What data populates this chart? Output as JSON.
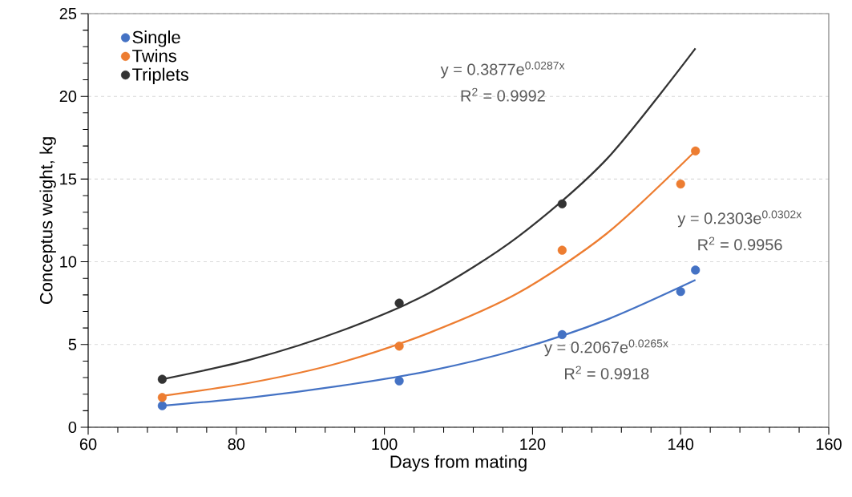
{
  "chart_data": {
    "type": "scatter",
    "xlabel": "Days from mating",
    "ylabel": "Conceptus weight, kg",
    "xlim": [
      60,
      160
    ],
    "ylim": [
      0,
      25
    ],
    "xticks": [
      60,
      80,
      100,
      120,
      140,
      160
    ],
    "yticks": [
      0,
      5,
      10,
      15,
      20,
      25
    ],
    "grid": "y",
    "legend": "top left",
    "series": [
      {
        "name": "Single",
        "marker": "circle",
        "color": "#4472c4",
        "x": [
          70,
          102,
          124,
          140,
          142
        ],
        "values": [
          1.3,
          2.8,
          5.6,
          8.2,
          9.5
        ]
      },
      {
        "name": "Twins",
        "marker": "circle",
        "color": "#ed7d31",
        "x": [
          70,
          102,
          124,
          140,
          142
        ],
        "values": [
          1.8,
          4.9,
          10.7,
          14.7,
          16.7
        ]
      },
      {
        "name": "Triplets",
        "marker": "circle",
        "color": "#333333",
        "x": [
          70,
          102,
          124
        ],
        "values": [
          2.9,
          7.5,
          13.5
        ]
      },
      {
        "type": "line",
        "marker": "none",
        "line_style": "solid",
        "color": "#4472c4",
        "x": [
          70,
          82,
          94,
          106,
          118,
          130,
          142
        ],
        "values": [
          1.3,
          1.8,
          2.5,
          3.4,
          4.7,
          6.5,
          8.9
        ]
      },
      {
        "type": "line",
        "marker": "none",
        "line_style": "solid",
        "color": "#ed7d31",
        "x": [
          70,
          82,
          94,
          106,
          118,
          130,
          142
        ],
        "values": [
          1.9,
          2.7,
          3.9,
          5.7,
          8.1,
          11.7,
          16.7
        ]
      },
      {
        "type": "line",
        "marker": "none",
        "line_style": "solid",
        "color": "#333333",
        "x": [
          70,
          82,
          94,
          106,
          118,
          130,
          142
        ],
        "values": [
          2.9,
          4.1,
          5.8,
          8.1,
          11.5,
          16.2,
          22.9
        ]
      }
    ],
    "annotations": [
      "y = 0.3877e$^{0.0287x}$",
      "R$^{2}$ = 0.9992",
      "y = 0.2303e$^{0.0302x}$",
      "R$^{2}$ = 0.9956",
      "y = 0.2067e$^{0.0265x}$",
      "R$^{2}$ = 0.9918"
    ]
  }
}
